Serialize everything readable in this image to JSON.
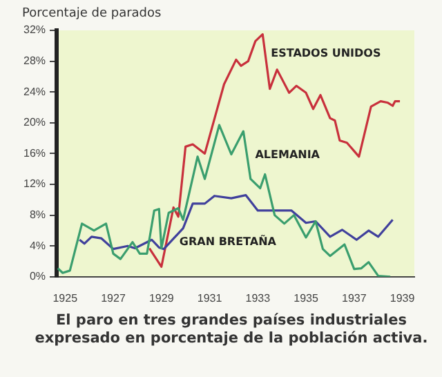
{
  "chart_data": {
    "type": "line",
    "title": "El paro en tres grandes países industriales expresado en porcentaje de la población activa.",
    "ylabel": "Porcentaje de parados",
    "xlim": [
      1924.65,
      1939.5
    ],
    "xticks": [
      1925,
      1927,
      1929,
      1931,
      1933,
      1935,
      1937,
      1939
    ],
    "ylim": [
      0,
      32
    ],
    "yticks": [
      {
        "value": 0,
        "label": "0%"
      },
      {
        "value": 4,
        "label": "4%"
      },
      {
        "value": 8,
        "label": "8%"
      },
      {
        "value": 12,
        "label": "12%"
      },
      {
        "value": 16,
        "label": "16%"
      },
      {
        "value": 20,
        "label": "20%"
      },
      {
        "value": 24,
        "label": "24%"
      },
      {
        "value": 28,
        "label": "28%"
      },
      {
        "value": 32,
        "label": "32%"
      }
    ],
    "grid": false,
    "legend": false,
    "marker": "none",
    "line_style": "solid",
    "series": [
      {
        "name": "ALEMANIA",
        "color": "#3a9e6e",
        "x": [
          1924.7,
          1924.9,
          1925.2,
          1925.7,
          1926.2,
          1926.7,
          1927.0,
          1927.3,
          1927.8,
          1928.1,
          1928.4,
          1928.7,
          1928.9,
          1929.0,
          1929.3,
          1929.7,
          1929.9,
          1930.5,
          1930.8,
          1931.4,
          1931.9,
          1932.4,
          1932.7,
          1933.1,
          1933.3,
          1933.7,
          1934.1,
          1934.5,
          1935.0,
          1935.4,
          1935.7,
          1936.0,
          1936.6,
          1937.0,
          1937.3,
          1937.6,
          1938.0,
          1938.5
        ],
        "values": [
          1.1,
          0.5,
          0.8,
          6.9,
          6.0,
          6.9,
          3.0,
          2.3,
          4.5,
          3.0,
          3.0,
          8.6,
          8.8,
          3.7,
          8.3,
          8.9,
          7.4,
          15.6,
          12.7,
          19.7,
          15.9,
          18.9,
          12.7,
          11.5,
          13.3,
          8.0,
          6.9,
          8.0,
          5.1,
          7.2,
          3.6,
          2.7,
          4.2,
          1.0,
          1.1,
          1.9,
          0.1,
          0.0
        ]
      },
      {
        "name": "GRAN BRETAÑA",
        "color": "#40409c",
        "x": [
          1925.6,
          1925.8,
          1926.1,
          1926.5,
          1927.0,
          1927.6,
          1927.9,
          1928.6,
          1928.9,
          1929.1,
          1929.9,
          1930.3,
          1930.8,
          1931.2,
          1931.9,
          1932.5,
          1933.0,
          1934.4,
          1935.0,
          1935.4,
          1936.0,
          1936.5,
          1937.1,
          1937.6,
          1938.0,
          1938.6
        ],
        "values": [
          4.8,
          4.3,
          5.2,
          5.0,
          3.6,
          4.0,
          3.7,
          4.8,
          3.8,
          3.6,
          6.3,
          9.5,
          9.5,
          10.5,
          10.2,
          10.6,
          8.6,
          8.6,
          7.0,
          7.2,
          5.2,
          6.1,
          4.8,
          6.0,
          5.2,
          7.4
        ]
      },
      {
        "name": "ESTADOS UNIDOS",
        "color": "#c8303c",
        "x": [
          1928.5,
          1929.0,
          1929.5,
          1929.7,
          1930.0,
          1930.3,
          1930.8,
          1931.6,
          1932.1,
          1932.3,
          1932.6,
          1932.9,
          1933.2,
          1933.5,
          1933.8,
          1934.3,
          1934.6,
          1935.0,
          1935.3,
          1935.6,
          1936.0,
          1936.2,
          1936.4,
          1936.7,
          1937.2,
          1937.7,
          1938.1,
          1938.4,
          1938.6,
          1938.7,
          1938.9
        ],
        "values": [
          3.7,
          1.3,
          9.0,
          7.8,
          16.9,
          17.2,
          16.0,
          25.0,
          28.2,
          27.4,
          28.0,
          30.6,
          31.5,
          24.4,
          26.9,
          23.9,
          24.8,
          23.9,
          21.8,
          23.6,
          20.6,
          20.3,
          17.7,
          17.4,
          15.6,
          22.1,
          22.8,
          22.6,
          22.2,
          22.8,
          22.8
        ]
      }
    ]
  }
}
